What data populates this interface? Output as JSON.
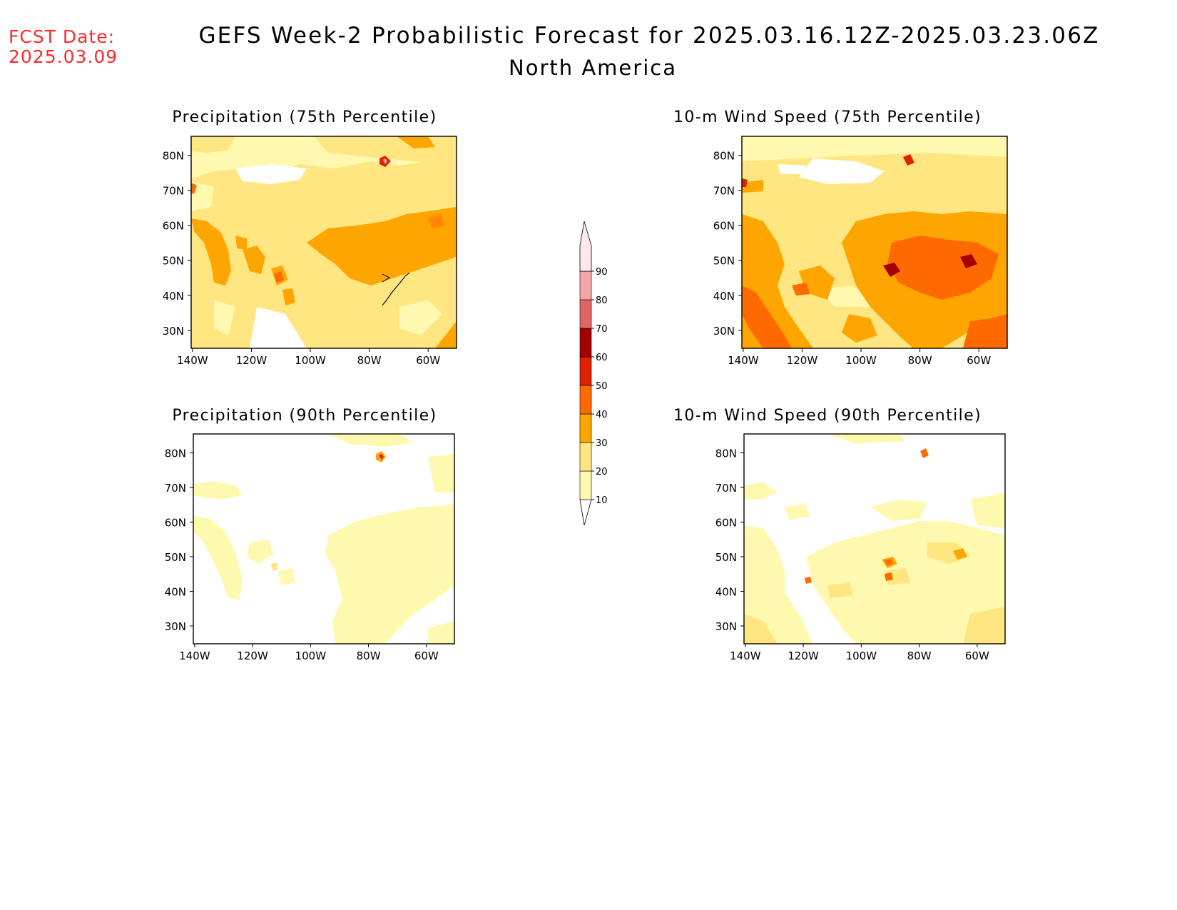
{
  "header": {
    "fcst_label_line1": "FCST Date:",
    "fcst_label_line2": "2025.03.09",
    "title": "GEFS Week-2 Probabilistic Forecast for 2025.03.16.12Z-2025.03.23.06Z",
    "subtitle": "North America",
    "fcst_color": "#ff2a2a"
  },
  "panels": [
    {
      "id": "precip75",
      "title": "Precipitation (75th Percentile)"
    },
    {
      "id": "wind75",
      "title": "10-m Wind Speed (75th Percentile)"
    },
    {
      "id": "precip90",
      "title": "Precipitation (90th Percentile)"
    },
    {
      "id": "wind90",
      "title": "10-m Wind Speed (90th Percentile)"
    }
  ],
  "axes": {
    "lat_labels": [
      "80N",
      "70N",
      "60N",
      "50N",
      "40N",
      "30N"
    ],
    "lon_labels": [
      "140W",
      "120W",
      "100W",
      "80W",
      "60W"
    ]
  },
  "colorbar": {
    "levels": [
      "10",
      "20",
      "30",
      "40",
      "50",
      "60",
      "70",
      "80",
      "90"
    ],
    "colors": [
      "#fff9b0",
      "#ffe680",
      "#ffa500",
      "#ff6a00",
      "#e02000",
      "#a50000",
      "#e06666",
      "#f4a6a6",
      "#ffe8ec"
    ]
  }
}
